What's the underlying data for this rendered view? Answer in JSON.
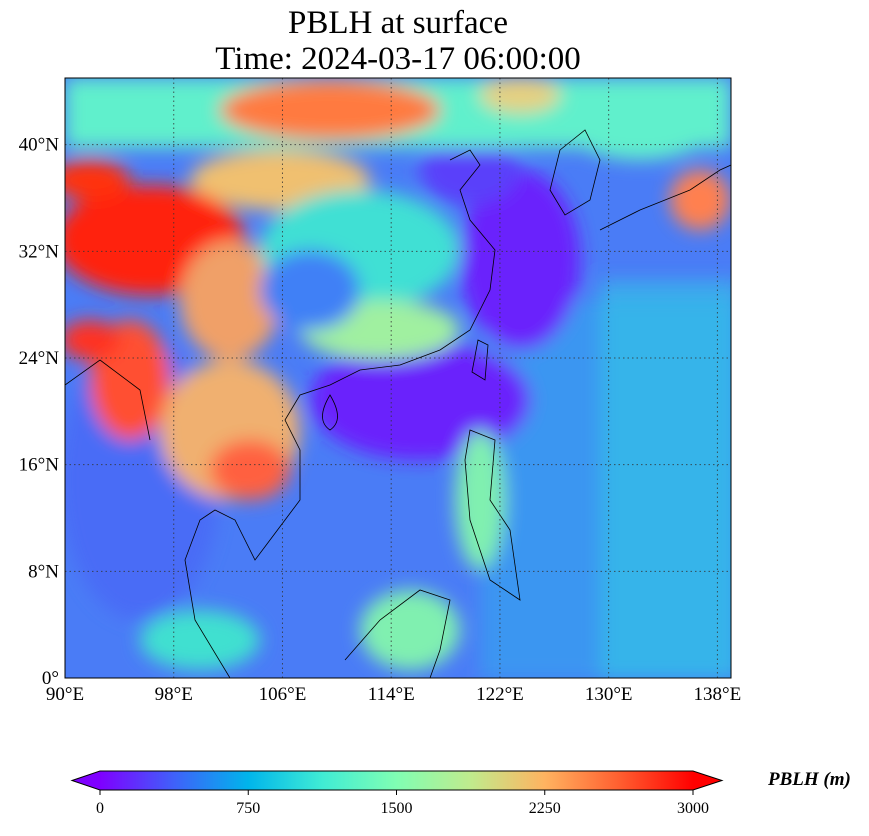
{
  "title": {
    "line1": "PBLH at surface",
    "line2": "Time: 2024-03-17 06:00:00"
  },
  "map": {
    "variable": "PBLH",
    "lon_range": [
      90,
      139
    ],
    "lat_range": [
      0,
      45
    ],
    "lon_ticks": [
      {
        "value": 90,
        "label": "90°E"
      },
      {
        "value": 98,
        "label": "98°E"
      },
      {
        "value": 106,
        "label": "106°E"
      },
      {
        "value": 114,
        "label": "114°E"
      },
      {
        "value": 122,
        "label": "122°E"
      },
      {
        "value": 130,
        "label": "130°E"
      },
      {
        "value": 138,
        "label": "138°E"
      }
    ],
    "lat_ticks": [
      {
        "value": 0,
        "label": "0°"
      },
      {
        "value": 8,
        "label": "8°N"
      },
      {
        "value": 16,
        "label": "16°N"
      },
      {
        "value": 24,
        "label": "24°N"
      },
      {
        "value": 32,
        "label": "32°N"
      },
      {
        "value": 40,
        "label": "40°N"
      }
    ]
  },
  "colorbar": {
    "label": "PBLH (m)",
    "range": [
      0,
      3000
    ],
    "ticks": [
      {
        "value": 0,
        "label": "0"
      },
      {
        "value": 750,
        "label": "750"
      },
      {
        "value": 1500,
        "label": "1500"
      },
      {
        "value": 2250,
        "label": "2250"
      },
      {
        "value": 3000,
        "label": "3000"
      }
    ],
    "colormap": [
      "#7f00ff",
      "#3f61fa",
      "#00b5eb",
      "#40ecd4",
      "#80feb3",
      "#c0eb8d",
      "#ffb360",
      "#ff5f30",
      "#ff0000"
    ]
  }
}
